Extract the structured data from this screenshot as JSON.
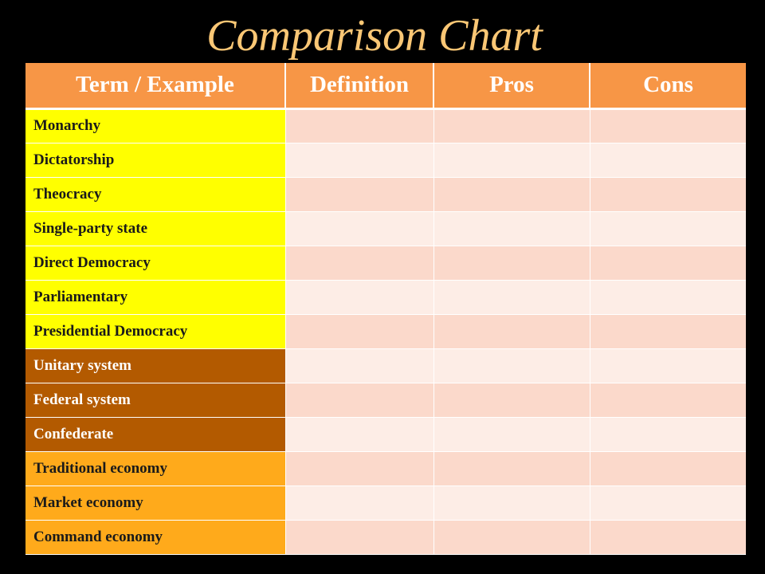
{
  "title": "Comparison Chart",
  "colors": {
    "title": "#FAC775",
    "header_bg": "#F79646",
    "group_yellow": "#FFFF00",
    "group_brown": "#B35A00",
    "group_orange": "#FFAA1B",
    "row_odd": "#FBD9CB",
    "row_even": "#FDEDE6"
  },
  "table": {
    "headers": [
      "Term / Example",
      "Definition",
      "Pros",
      "Cons"
    ],
    "rows": [
      {
        "term": "Monarchy",
        "group": "yellow",
        "definition": "",
        "pros": "",
        "cons": ""
      },
      {
        "term": "Dictatorship",
        "group": "yellow",
        "definition": "",
        "pros": "",
        "cons": ""
      },
      {
        "term": "Theocracy",
        "group": "yellow",
        "definition": "",
        "pros": "",
        "cons": ""
      },
      {
        "term": "Single-party state",
        "group": "yellow",
        "definition": "",
        "pros": "",
        "cons": ""
      },
      {
        "term": "Direct Democracy",
        "group": "yellow",
        "definition": "",
        "pros": "",
        "cons": ""
      },
      {
        "term": "Parliamentary",
        "group": "yellow",
        "definition": "",
        "pros": "",
        "cons": ""
      },
      {
        "term": "Presidential Democracy",
        "group": "yellow",
        "definition": "",
        "pros": "",
        "cons": ""
      },
      {
        "term": "Unitary system",
        "group": "brown",
        "definition": "",
        "pros": "",
        "cons": ""
      },
      {
        "term": "Federal system",
        "group": "brown",
        "definition": "",
        "pros": "",
        "cons": ""
      },
      {
        "term": "Confederate",
        "group": "brown",
        "definition": "",
        "pros": "",
        "cons": ""
      },
      {
        "term": "Traditional economy",
        "group": "orange",
        "definition": "",
        "pros": "",
        "cons": ""
      },
      {
        "term": "Market economy",
        "group": "orange",
        "definition": "",
        "pros": "",
        "cons": ""
      },
      {
        "term": "Command economy",
        "group": "orange",
        "definition": "",
        "pros": "",
        "cons": ""
      }
    ]
  }
}
